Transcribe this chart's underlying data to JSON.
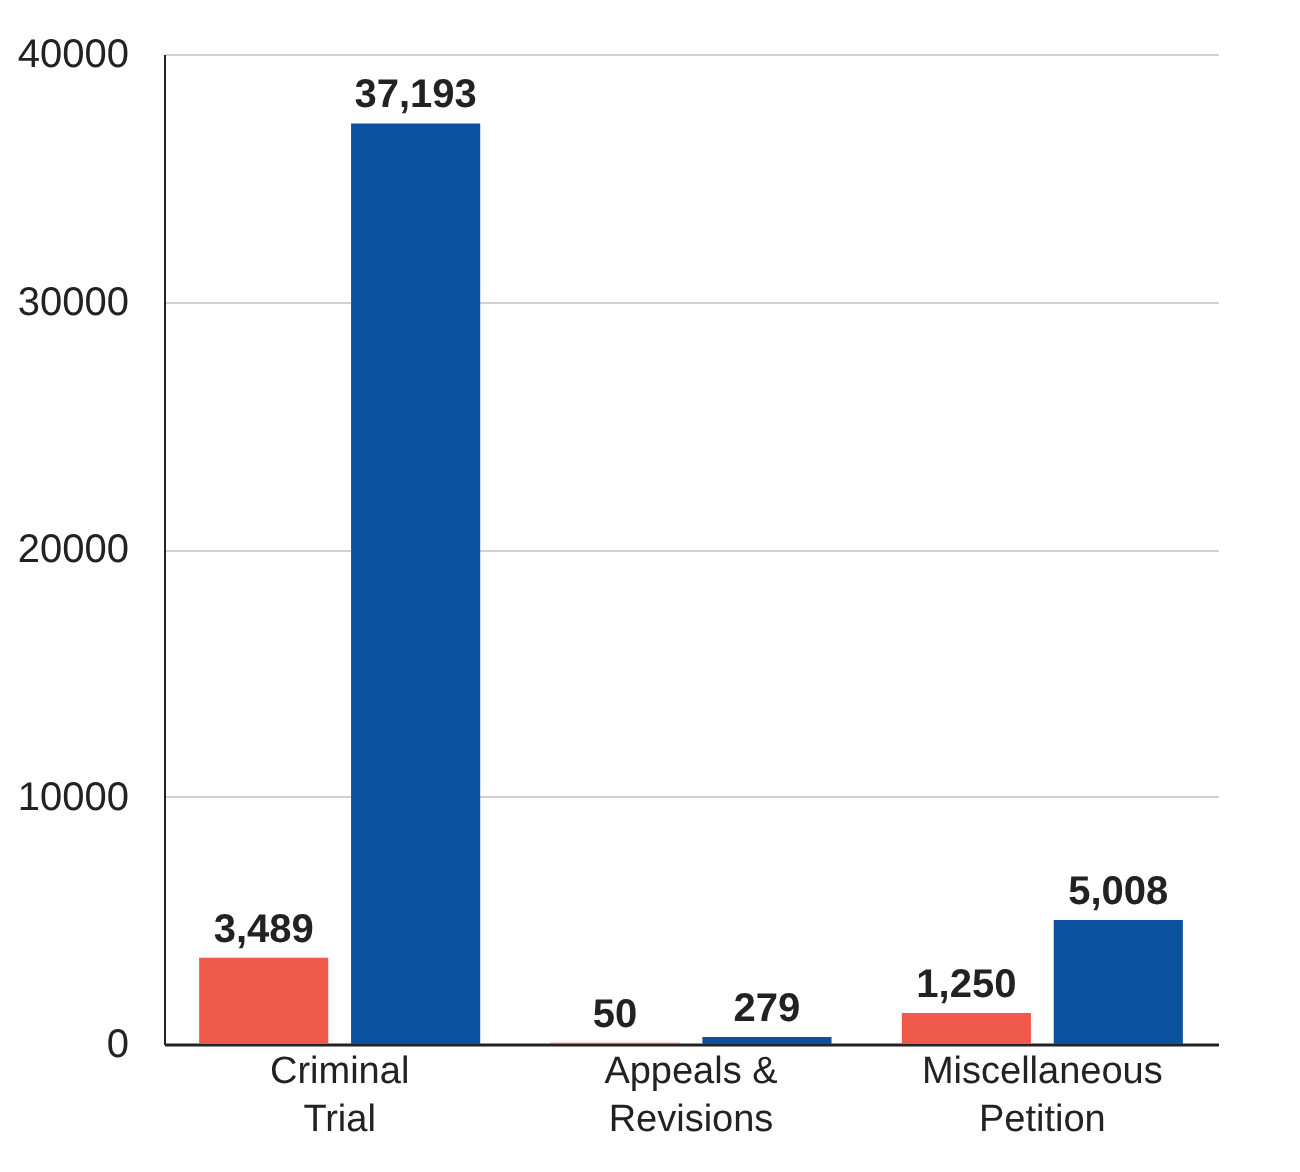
{
  "chart_data": {
    "type": "bar",
    "categories": [
      "Criminal Trial",
      "Appeals & Revisions",
      "Miscellaneous Petition"
    ],
    "series": [
      {
        "color": "#f05a4a",
        "values": [
          3489,
          50,
          1250
        ],
        "value_labels": [
          "3,489",
          "50",
          "1,250"
        ]
      },
      {
        "color": "#0a52a0",
        "values": [
          37193,
          279,
          5008
        ],
        "value_labels": [
          "37,193",
          "279",
          "5,008"
        ]
      }
    ],
    "ylim": [
      0,
      40000
    ],
    "yticks": [
      0,
      10000,
      20000,
      30000,
      40000
    ],
    "grid": "y",
    "legend": false
  }
}
